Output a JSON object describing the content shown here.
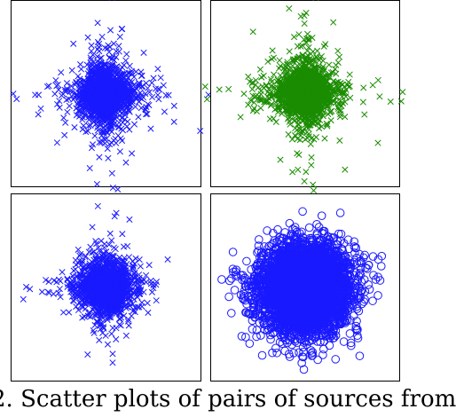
{
  "caption": "2. Scatter plots of pairs of sources from",
  "chart_data": [
    {
      "type": "scatter",
      "marker": "x",
      "color": "#1a1aff",
      "distribution": "heavy-tailed, cross-shaped spikes along both axes",
      "xlim": [
        -5,
        5
      ],
      "ylim": [
        -5,
        5
      ],
      "n_points": 2000,
      "seed": 11,
      "tail_index": 3.2,
      "scale": 0.55,
      "grid": false
    },
    {
      "type": "scatter",
      "marker": "x",
      "color": "#1a8c00",
      "distribution": "heavy-tailed, cross-shaped spikes along both axes",
      "xlim": [
        -5,
        5
      ],
      "ylim": [
        -5,
        5
      ],
      "n_points": 2000,
      "seed": 23,
      "tail_index": 3.2,
      "scale": 0.55,
      "grid": false
    },
    {
      "type": "scatter",
      "marker": "x",
      "color": "#1a1aff",
      "distribution": "mildly heavy-tailed, roughly circular core",
      "xlim": [
        -5,
        5
      ],
      "ylim": [
        -5,
        5
      ],
      "n_points": 2000,
      "seed": 37,
      "tail_index": 4.5,
      "scale": 0.6,
      "grid": false
    },
    {
      "type": "scatter",
      "marker": "o",
      "color": "#1a1aff",
      "distribution": "Gaussian, dense circular cloud",
      "xlim": [
        -4,
        4
      ],
      "ylim": [
        -4,
        4
      ],
      "n_points": 4500,
      "seed": 53,
      "tail_index": 0,
      "scale": 1.0,
      "grid": false
    }
  ]
}
